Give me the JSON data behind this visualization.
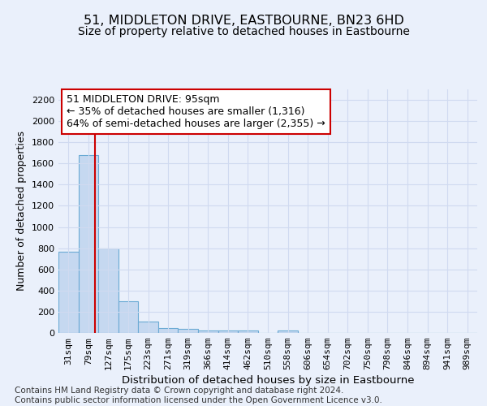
{
  "title": "51, MIDDLETON DRIVE, EASTBOURNE, BN23 6HD",
  "subtitle": "Size of property relative to detached houses in Eastbourne",
  "xlabel": "Distribution of detached houses by size in Eastbourne",
  "ylabel": "Number of detached properties",
  "categories": [
    "31sqm",
    "79sqm",
    "127sqm",
    "175sqm",
    "223sqm",
    "271sqm",
    "319sqm",
    "366sqm",
    "414sqm",
    "462sqm",
    "510sqm",
    "558sqm",
    "606sqm",
    "654sqm",
    "702sqm",
    "750sqm",
    "798sqm",
    "846sqm",
    "894sqm",
    "941sqm",
    "989sqm"
  ],
  "values": [
    770,
    1680,
    800,
    300,
    110,
    45,
    35,
    25,
    25,
    20,
    0,
    20,
    0,
    0,
    0,
    0,
    0,
    0,
    0,
    0,
    0
  ],
  "bar_color": "#c5d8f0",
  "bar_edge_color": "#6aaad4",
  "vline_x_index": 1.35,
  "vline_color": "#cc0000",
  "annotation_text": "51 MIDDLETON DRIVE: 95sqm\n← 35% of detached houses are smaller (1,316)\n64% of semi-detached houses are larger (2,355) →",
  "annotation_box_color": "#cc0000",
  "annotation_text_color": "#000000",
  "ylim": [
    0,
    2300
  ],
  "yticks": [
    0,
    200,
    400,
    600,
    800,
    1000,
    1200,
    1400,
    1600,
    1800,
    2000,
    2200
  ],
  "footer_line1": "Contains HM Land Registry data © Crown copyright and database right 2024.",
  "footer_line2": "Contains public sector information licensed under the Open Government Licence v3.0.",
  "background_color": "#eaf0fb",
  "plot_bg_color": "#eaf0fb",
  "grid_color": "#d0daf0",
  "title_fontsize": 11.5,
  "subtitle_fontsize": 10,
  "xlabel_fontsize": 9.5,
  "ylabel_fontsize": 9,
  "tick_fontsize": 8,
  "footer_fontsize": 7.5
}
